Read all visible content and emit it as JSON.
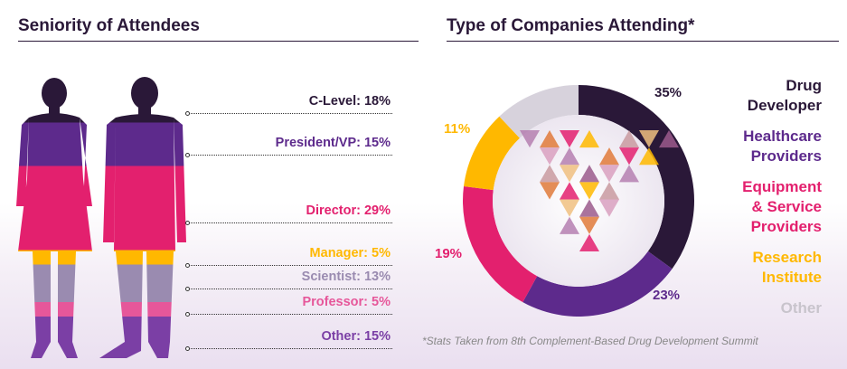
{
  "seniority": {
    "title": "Seniority of Attendees"
  },
  "companies": {
    "title": "Type of Companies Attending*",
    "footnote": "*Stats Taken from 8th Complement-Based Drug Development Summit"
  },
  "chart_data": [
    {
      "type": "bar",
      "title": "Seniority of Attendees",
      "categories": [
        "C-Level",
        "President/VP",
        "Director",
        "Manager",
        "Scientist",
        "Professor",
        "Other"
      ],
      "values": [
        18,
        15,
        29,
        5,
        13,
        5,
        15
      ],
      "labels": [
        "C-Level: 18%",
        "President/VP: 15%",
        "Director: 29%",
        "Manager: 5%",
        "Scientist: 13%",
        "Professor: 5%",
        "Other: 15%"
      ],
      "colors": [
        "#2a1838",
        "#5d2a8c",
        "#e3206e",
        "#ffb800",
        "#9a8bb0",
        "#e6579a",
        "#7b3fa5"
      ]
    },
    {
      "type": "pie",
      "title": "Type of Companies Attending*",
      "categories": [
        "Drug Developer",
        "Healthcare Providers",
        "Equipment & Service Providers",
        "Research Institute",
        "Other"
      ],
      "legend": [
        "Drug\nDeveloper",
        "Healthcare\nProviders",
        "Equipment\n& Service\nProviders",
        "Research\nInstitute",
        "Other"
      ],
      "values": [
        35,
        23,
        19,
        11,
        12
      ],
      "labels": [
        "35%",
        "23%",
        "19%",
        "11%",
        ""
      ],
      "colors": [
        "#2a1838",
        "#5d2a8c",
        "#e3206e",
        "#ffb800",
        "#d7d2dc"
      ]
    }
  ]
}
